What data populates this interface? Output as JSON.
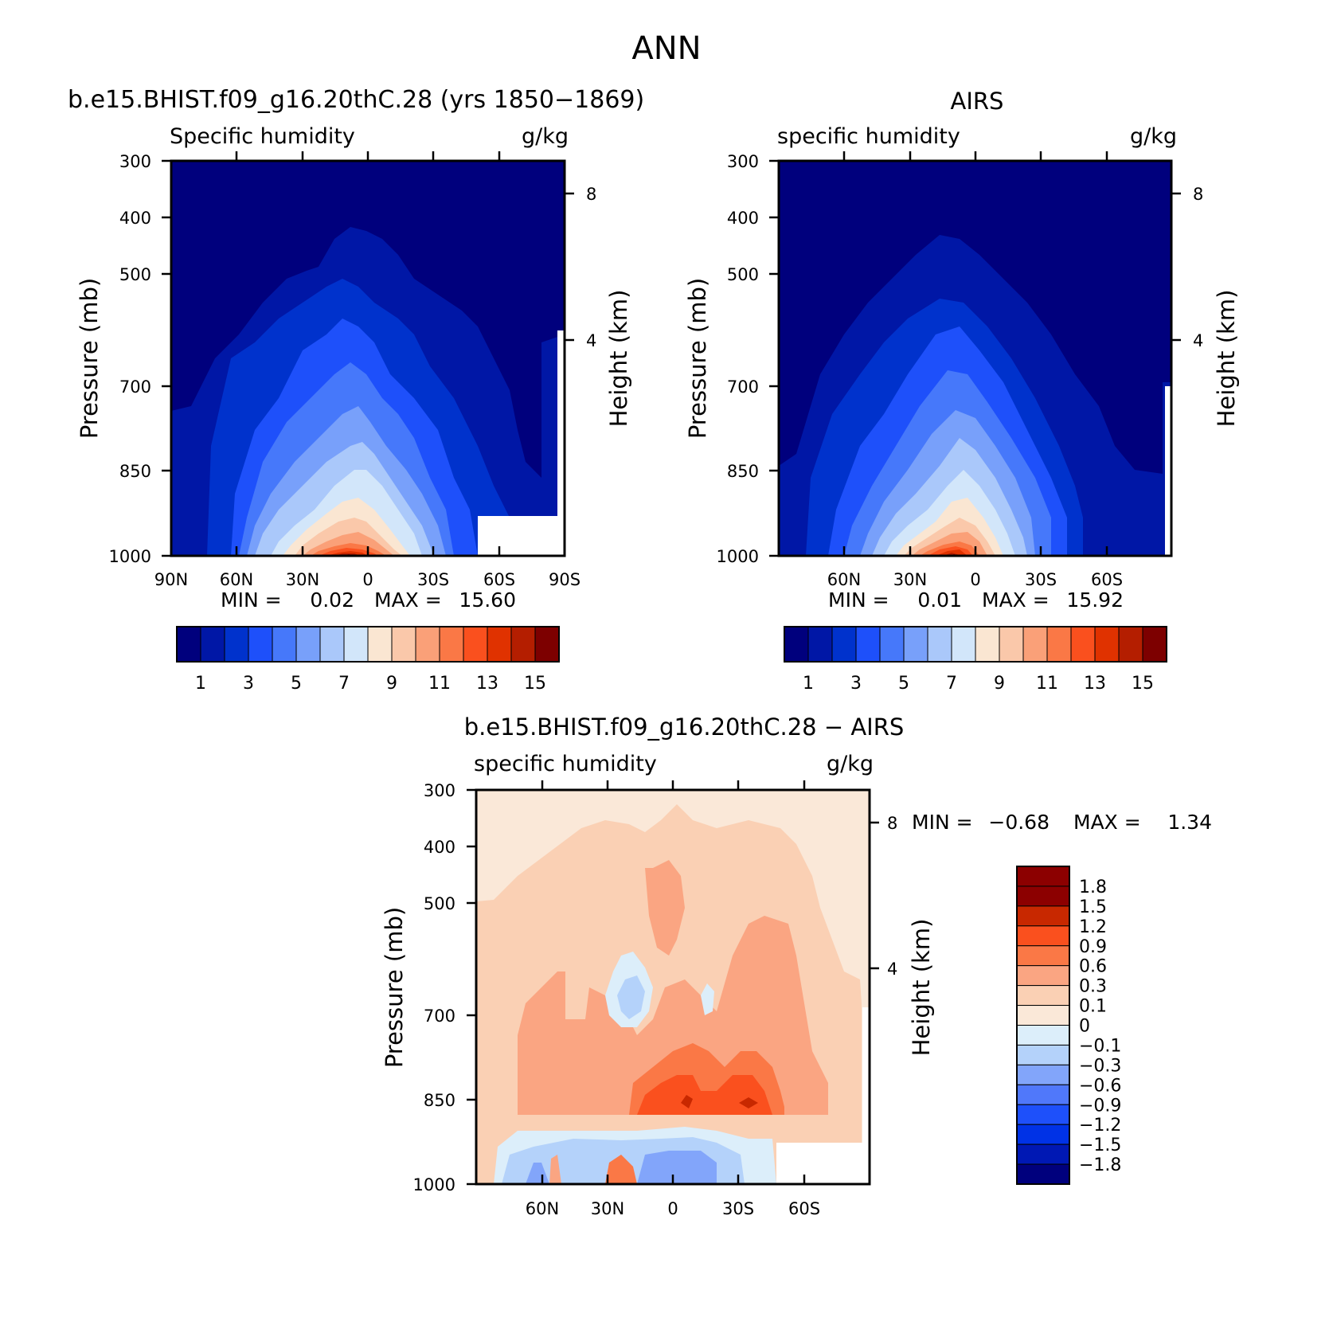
{
  "page_title": "ANN",
  "colors": {
    "abs_levels": [
      "#00007d",
      "#0017a6",
      "#0032cc",
      "#1e50fa",
      "#4678fa",
      "#78a0fa",
      "#aac8fa",
      "#d2e6fa",
      "#fae6d2",
      "#fac8aa",
      "#faa078",
      "#fa7846",
      "#fa501e",
      "#e03200",
      "#b41e00",
      "#7d0000"
    ],
    "diff_levels": [
      "#00007d",
      "#0018b4",
      "#0032e6",
      "#1e50fa",
      "#5078fa",
      "#82a5fa",
      "#b4d2fa",
      "#dceefa",
      "#fae8d8",
      "#fad0b4",
      "#faa582",
      "#fa7846",
      "#fa501e",
      "#c82800",
      "#8c0000"
    ],
    "axis": "#000000",
    "background": "#ffffff"
  },
  "panels": {
    "model": {
      "title": "b.e15.BHIST.f09_g16.20thC.28 (yrs 1850−1869)",
      "left_label": "Specific humidity",
      "unit": "g/kg",
      "ylabel": "Pressure (mb)",
      "ylabel_right": "Height (km)",
      "stats": {
        "min_label": "MIN =",
        "min": "0.02",
        "max_label": "MAX =",
        "max": "15.60"
      }
    },
    "obs": {
      "title": "AIRS",
      "left_label": "specific humidity",
      "unit": "g/kg",
      "ylabel": "Pressure (mb)",
      "ylabel_right": "Height (km)",
      "stats": {
        "min_label": "MIN =",
        "min": "0.01",
        "max_label": "MAX =",
        "max": "15.92"
      }
    },
    "diff": {
      "title": "b.e15.BHIST.f09_g16.20thC.28 − AIRS",
      "left_label": "specific humidity",
      "unit": "g/kg",
      "ylabel": "Pressure (mb)",
      "ylabel_right": "Height (km)",
      "stats": {
        "min_label": "MIN =",
        "min": "−0.68",
        "max_label": "MAX =",
        "max": "1.34"
      }
    }
  },
  "chart_data": [
    {
      "type": "heatmap",
      "title": "b.e15.BHIST.f09_g16.20thC.28 (yrs 1850−1869)",
      "variable": "Specific humidity",
      "unit": "g/kg",
      "xlabel": "",
      "ylabel": "Pressure (mb)",
      "ylabel_right": "Height (km)",
      "x_ticks": [
        "90N",
        "60N",
        "30N",
        "0",
        "30S",
        "60S",
        "90S"
      ],
      "y_ticks": [
        300,
        400,
        500,
        700,
        850,
        1000
      ],
      "y_right_ticks": [
        8,
        4
      ],
      "ylim": [
        1000,
        300
      ],
      "colorbar_labels": [
        "1",
        "3",
        "5",
        "7",
        "9",
        "11",
        "13",
        "15"
      ],
      "colorbar_levels": [
        1,
        2,
        3,
        4,
        5,
        6,
        7,
        8,
        9,
        10,
        11,
        12,
        13,
        14,
        15
      ],
      "min": 0.02,
      "max": 15.6,
      "approx_contours": [
        {
          "level": 1,
          "top_mb": 430,
          "at_lat": 5
        },
        {
          "level": 3,
          "top_mb": 500,
          "at_lat": 5
        },
        {
          "level": 5,
          "top_mb": 620,
          "at_lat": 5
        },
        {
          "level": 7,
          "top_mb": 760,
          "at_lat": 5
        },
        {
          "level": 9,
          "top_mb": 820,
          "at_lat": 5
        },
        {
          "level": 13,
          "top_mb": 900,
          "at_lat": 5
        },
        {
          "level": 15,
          "top_mb": 970,
          "at_lat": 5
        }
      ]
    },
    {
      "type": "heatmap",
      "title": "AIRS",
      "variable": "specific humidity",
      "unit": "g/kg",
      "xlabel": "",
      "ylabel": "Pressure (mb)",
      "ylabel_right": "Height (km)",
      "x_ticks": [
        "60N",
        "30N",
        "0",
        "30S",
        "60S"
      ],
      "y_ticks": [
        300,
        400,
        500,
        700,
        850,
        1000
      ],
      "y_right_ticks": [
        8,
        4
      ],
      "ylim": [
        1000,
        300
      ],
      "colorbar_labels": [
        "1",
        "3",
        "5",
        "7",
        "9",
        "11",
        "13",
        "15"
      ],
      "colorbar_levels": [
        1,
        2,
        3,
        4,
        5,
        6,
        7,
        8,
        9,
        10,
        11,
        12,
        13,
        14,
        15
      ],
      "min": 0.01,
      "max": 15.92,
      "approx_contours": [
        {
          "level": 1,
          "top_mb": 450,
          "at_lat": 5
        },
        {
          "level": 3,
          "top_mb": 520,
          "at_lat": 5
        },
        {
          "level": 5,
          "top_mb": 640,
          "at_lat": 5
        },
        {
          "level": 7,
          "top_mb": 780,
          "at_lat": 5
        },
        {
          "level": 9,
          "top_mb": 830,
          "at_lat": 5
        },
        {
          "level": 13,
          "top_mb": 920,
          "at_lat": 5
        },
        {
          "level": 15,
          "top_mb": 980,
          "at_lat": 5
        }
      ]
    },
    {
      "type": "heatmap",
      "title": "b.e15.BHIST.f09_g16.20thC.28 − AIRS",
      "variable": "specific humidity",
      "unit": "g/kg",
      "xlabel": "",
      "ylabel": "Pressure (mb)",
      "ylabel_right": "Height (km)",
      "x_ticks": [
        "60N",
        "30N",
        "0",
        "30S",
        "60S"
      ],
      "y_ticks": [
        300,
        400,
        500,
        700,
        850,
        1000
      ],
      "y_right_ticks": [
        8,
        4
      ],
      "ylim": [
        1000,
        300
      ],
      "colorbar_labels": [
        "1.8",
        "1.5",
        "1.2",
        "0.9",
        "0.6",
        "0.3",
        "0.1",
        "0",
        "−0.1",
        "−0.3",
        "−0.6",
        "−0.9",
        "−1.2",
        "−1.5",
        "−1.8"
      ],
      "colorbar_levels": [
        -1.8,
        -1.5,
        -1.2,
        -0.9,
        -0.6,
        -0.3,
        -0.1,
        0,
        0.1,
        0.3,
        0.6,
        0.9,
        1.2,
        1.5,
        1.8
      ],
      "min": -0.68,
      "max": 1.34
    }
  ]
}
